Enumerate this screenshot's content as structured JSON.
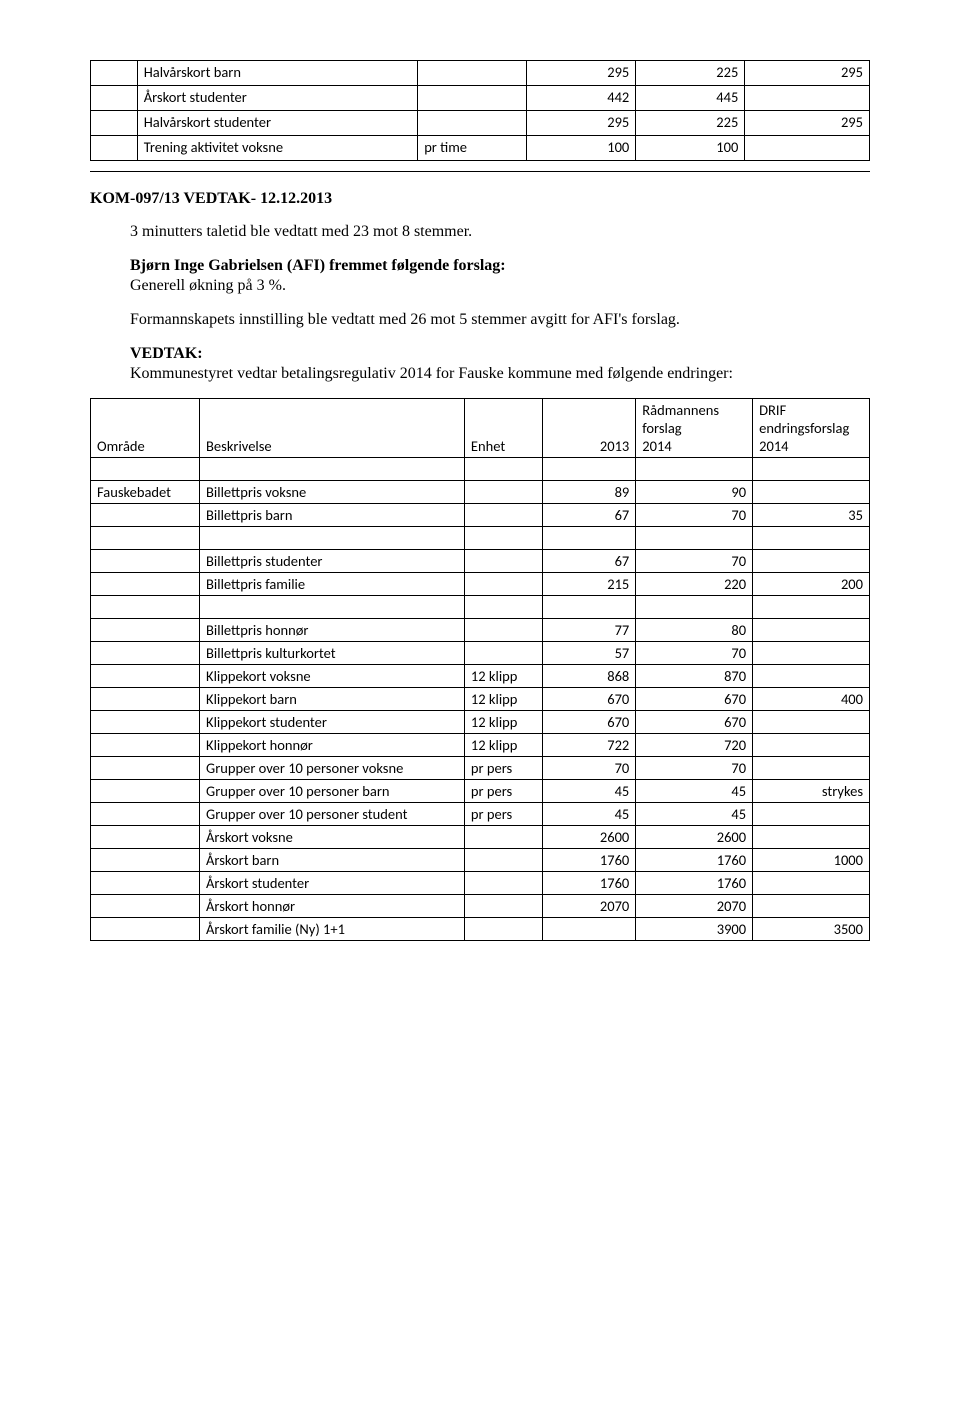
{
  "topTable": {
    "rows": [
      {
        "label": "Halvårskort barn",
        "c1": "",
        "c2": "295",
        "c3": "225",
        "c4": "295"
      },
      {
        "label": "Årskort studenter",
        "c1": "",
        "c2": "442",
        "c3": "445",
        "c4": ""
      },
      {
        "label": "Halvårskort studenter",
        "c1": "",
        "c2": "295",
        "c3": "225",
        "c4": "295"
      },
      {
        "label": "Trening aktivitet voksne",
        "c1": "pr time",
        "c2": "100",
        "c3": "100",
        "c4": ""
      }
    ]
  },
  "heading": "KOM-097/13 VEDTAK- 12.12.2013",
  "para1": "3 minutters taletid ble vedtatt med 23 mot 8 stemmer.",
  "para2a": "Bjørn Inge Gabrielsen (AFI) fremmet følgende forslag:",
  "para2b": "Generell økning på 3 %.",
  "para3": "Formannskapets innstilling ble vedtatt med 26 mot 5 stemmer avgitt for AFI's forslag.",
  "para4a": "VEDTAK:",
  "para4b": "Kommunestyret vedtar betalingsregulativ 2014 for Fauske kommune med følgende endringer:",
  "mainHeader": {
    "area": "Område",
    "desc": "Beskrivelse",
    "unit": "Enhet",
    "y2013": "2013",
    "y2014_a": "Rådmannens",
    "y2014_b": "forslag",
    "y2014_c": "2014",
    "drif_a": "DRIF",
    "drif_b": "endringsforslag",
    "drif_c": "2014"
  },
  "area1": "Fauskebadet",
  "rows": [
    {
      "desc": "Billettpris voksne",
      "unit": "",
      "v13": "89",
      "v14": "90",
      "drif": ""
    },
    {
      "desc": "Billettpris barn",
      "unit": "",
      "v13": "67",
      "v14": "70",
      "drif": "35"
    },
    {
      "desc": "Billettpris studenter",
      "unit": "",
      "v13": "67",
      "v14": "70",
      "drif": ""
    },
    {
      "desc": "Billettpris familie",
      "unit": "",
      "v13": "215",
      "v14": "220",
      "drif": "200"
    },
    {
      "desc": "Billettpris honnør",
      "unit": "",
      "v13": "77",
      "v14": "80",
      "drif": ""
    },
    {
      "desc": "Billettpris kulturkortet",
      "unit": "",
      "v13": "57",
      "v14": "70",
      "drif": ""
    },
    {
      "desc": "Klippekort voksne",
      "unit": "12 klipp",
      "v13": "868",
      "v14": "870",
      "drif": ""
    },
    {
      "desc": "Klippekort barn",
      "unit": "12 klipp",
      "v13": "670",
      "v14": "670",
      "drif": "400"
    },
    {
      "desc": "Klippekort studenter",
      "unit": "12 klipp",
      "v13": "670",
      "v14": "670",
      "drif": ""
    },
    {
      "desc": "Klippekort honnør",
      "unit": "12 klipp",
      "v13": "722",
      "v14": "720",
      "drif": ""
    },
    {
      "desc": "Grupper over 10 personer voksne",
      "unit": "pr pers",
      "v13": "70",
      "v14": "70",
      "drif": ""
    },
    {
      "desc": "Grupper over 10 personer barn",
      "unit": "pr pers",
      "v13": "45",
      "v14": "45",
      "drif": "strykes"
    },
    {
      "desc": "Grupper over 10 personer student",
      "unit": "pr pers",
      "v13": "45",
      "v14": "45",
      "drif": ""
    },
    {
      "desc": "Årskort voksne",
      "unit": "",
      "v13": "2600",
      "v14": "2600",
      "drif": ""
    },
    {
      "desc": "Årskort barn",
      "unit": "",
      "v13": "1760",
      "v14": "1760",
      "drif": "1000"
    },
    {
      "desc": "Årskort studenter",
      "unit": "",
      "v13": "1760",
      "v14": "1760",
      "drif": ""
    },
    {
      "desc": "Årskort honnør",
      "unit": "",
      "v13": "2070",
      "v14": "2070",
      "drif": ""
    },
    {
      "desc": "Årskort familie (Ny) 1+1",
      "unit": "",
      "v13": "",
      "v14": "3900",
      "drif": "3500"
    }
  ]
}
